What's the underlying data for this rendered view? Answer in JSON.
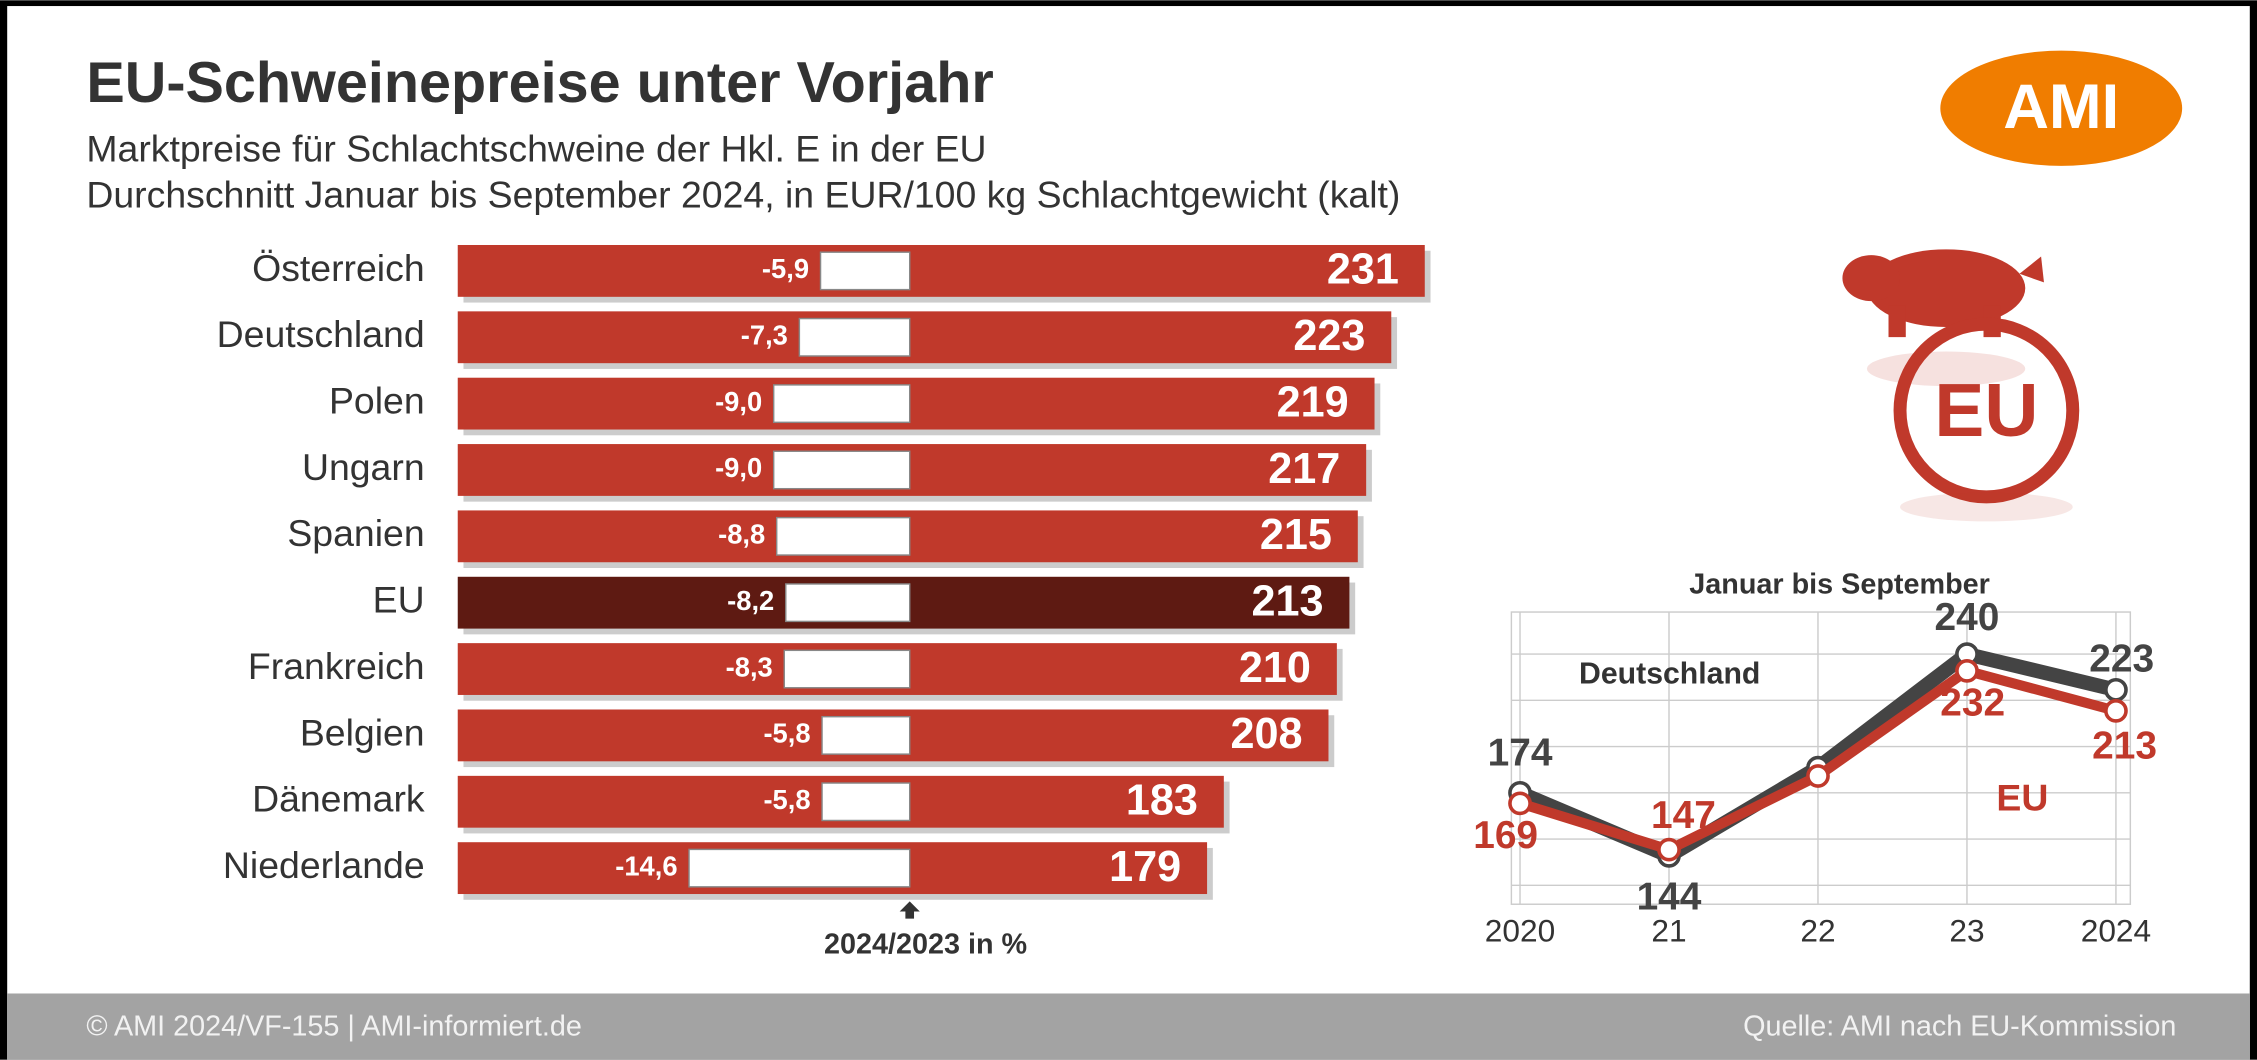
{
  "logo": "AMI",
  "badge": "EU",
  "footer": {
    "left": "© AMI 2024/VF-155 | AMI-informiert.de",
    "right": "Quelle: AMI nach EU-Kommission"
  },
  "chart_data": [
    {
      "type": "hbar",
      "title": "EU-Schweinepreise unter Vorjahr",
      "subtitle": [
        "Marktpreise für Schlachtschweine der Hkl. E in der EU",
        "Durchschnitt Januar bis September 2024, in EUR/100 kg Schlachtgewicht (kalt)"
      ],
      "categories": [
        "Österreich",
        "Deutschland",
        "Polen",
        "Ungarn",
        "Spanien",
        "EU",
        "Frankreich",
        "Belgien",
        "Dänemark",
        "Niederlande"
      ],
      "values": [
        231,
        223,
        219,
        217,
        215,
        213,
        210,
        208,
        183,
        179
      ],
      "colors": [
        "#c0392b",
        "#c0392b",
        "#c0392b",
        "#c0392b",
        "#c0392b",
        "#5e1a12",
        "#c0392b",
        "#c0392b",
        "#c0392b",
        "#c0392b"
      ],
      "xlim": [
        0,
        240
      ],
      "change": {
        "label": "2024/2023 in %",
        "color": "#ffffff",
        "values": [
          -5.9,
          -7.3,
          -9.0,
          -9.0,
          -8.8,
          -8.2,
          -8.3,
          -5.8,
          -5.8,
          -14.6
        ],
        "value_labels": [
          "-5,9",
          "-7,3",
          "-9,0",
          "-9,0",
          "-8,8",
          "-8,2",
          "-8,3",
          "-5,8",
          "-5,8",
          "-14,6"
        ],
        "xlim": [
          -15,
          0
        ]
      }
    },
    {
      "type": "line",
      "title": "Januar bis September",
      "categories": [
        "2020",
        "21",
        "22",
        "23",
        "2024"
      ],
      "series": [
        {
          "name": "Deutschland",
          "color": "#444444",
          "values": [
            174,
            144,
            186,
            240,
            223
          ],
          "value_labels": [
            "174",
            "144",
            null,
            "240",
            "223"
          ]
        },
        {
          "name": "EU",
          "color": "#c0392b",
          "values": [
            169,
            147,
            182,
            232,
            213
          ],
          "value_labels": [
            "169",
            "147",
            null,
            "232",
            "213"
          ]
        }
      ],
      "ylim": [
        121,
        260
      ],
      "yticks": [
        130,
        152,
        174,
        196,
        218,
        240
      ],
      "grid": true
    }
  ]
}
